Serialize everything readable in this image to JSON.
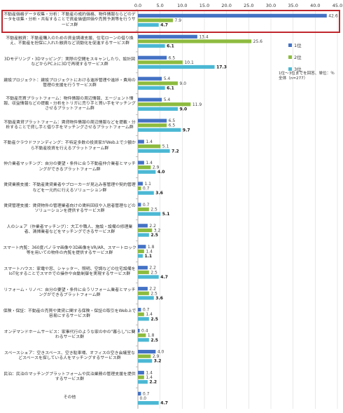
{
  "chart_data": {
    "type": "bar",
    "orientation": "horizontal",
    "title": "",
    "xlabel": "",
    "ylabel": "",
    "xlim": [
      0,
      45
    ],
    "x_ticks": [
      "0.0",
      "5.0",
      "10.0",
      "15.0",
      "20.0",
      "25.0",
      "30.0",
      "35.0",
      "40.0",
      "45.0"
    ],
    "grid": true,
    "legend_position": "right",
    "note": "1位～3位までを回答、単位：％　全体（n=277）",
    "categories": [
      "不動産価格データ収集・分析：不動産の成約価格、物件情報ならどのデータを収集・分析・共有することで資産価値評価や売買予測等を行うサービス群",
      "不動産融資：不動産購入のための資金調達支援、住宅ローンの借り換え、不動産を担保に入れた融資など流動化を促進するサービス群",
      "3Dモデリング・3Dマッピング：実際の空間をスキャンしたり、設計図などからPC上に3Dで再現するサービス群",
      "建設プロジェクト：建設プロジェクトにおける進捗管理や進捗・費用の管理の支援を行うサービス群",
      "不動産売買プラットフォーム：物件情報の周辺情報、エージェント情報、収益情報などの提載・分析をトリガに売り手と買い手をマッチングさせるプラットフォーム群",
      "不動産賃貸プラットフォーム：賃貸物件情報の周辺情報などを提載・分析することで貸し手と借り手をマッチングさせるプラットフォーム群",
      "不動産クラウドファンディング：不特定多数の投資家がWeb上で少額から不動産投資を行えるプラットフォーム群",
      "仲介業者マッチング：自分の要望・条件に合う不動産仲介業者とマッチングができるプラットフォーム群",
      "賃貸業務支援：不動産賃貸業者やブローカーが見込み客管理や契約管理などを一元的に行えるソリューション群",
      "賃貸管理支援：賃貸物件の管理業者向けの賃料回収や入居者管理などのソリューションを提供するサービス群",
      "人のシェア（作業者マッチング）：大工や職人、施設・設備の修理業者、清掃業者などをマッチングできるサービス群",
      "スマート内覧：360度パノラマ画像や3D画像をVR/AR、スマートロック等を用いての物件の内覧を提供するサービス群",
      "スマートハウス：家電や窓、シャッター、照明、空調などの住宅設備をIoT化することでスマホでの操作や自動制御を実現するサービス群",
      "リフォーム・リノベ：自分の要望・条件に合うリフォーム業者とマッチングができるプラットフォーム群",
      "保険・保証：不動産の売買や賃貸に関する保険・保証の取引をWeb上で容易にするサービス群",
      "オンデマンドホームサービス：家事代行のような家の中の\"暮らし\"に関わるサービス群",
      "スペースシェア：空きスペース、空き駐車場、オフィスの空き会議室などスペースを探している人をマッチングするサービス群",
      "民泊：民泊のマッチングプラットフォームや民泊業務の管理支援を提供するサービス群",
      "その他"
    ],
    "series": [
      {
        "name": "1位",
        "color": "#4472c4",
        "values": [
          42.6,
          13.4,
          6.5,
          5.4,
          5.4,
          6.5,
          1.4,
          1.4,
          1.1,
          0.7,
          2.2,
          1.8,
          2.2,
          2.2,
          0.7,
          0.4,
          4.0,
          1.4,
          0.7
        ]
      },
      {
        "name": "2位",
        "color": "#8dbb3f",
        "values": [
          7.9,
          25.6,
          10.1,
          9.0,
          11.9,
          6.5,
          5.1,
          2.9,
          0.7,
          2.5,
          3.2,
          1.4,
          2.5,
          2.5,
          1.4,
          1.8,
          2.9,
          1.4,
          0.0
        ]
      },
      {
        "name": "3位",
        "color": "#4bb8d4",
        "values": [
          4.7,
          6.1,
          17.3,
          6.1,
          9.0,
          9.7,
          7.2,
          4.0,
          3.6,
          5.1,
          2.5,
          1.1,
          4.7,
          3.6,
          2.5,
          2.5,
          3.2,
          2.2,
          4.7
        ]
      }
    ],
    "highlight_category_index": 0
  }
}
